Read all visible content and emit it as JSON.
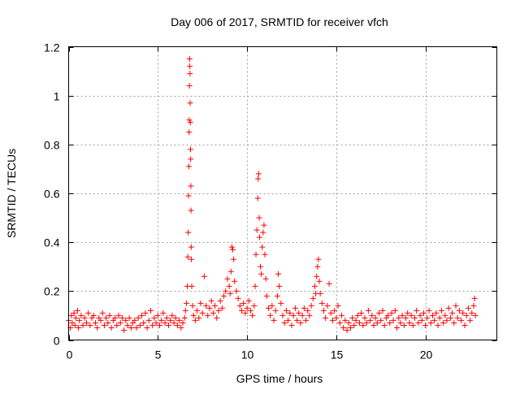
{
  "chart_data": {
    "type": "scatter",
    "title": "Day 006 of 2017, SRMTID for receiver vfch",
    "xlabel": "GPS time / hours",
    "ylabel": "SRMTID / TECUs",
    "xlim": [
      0,
      24
    ],
    "ylim": [
      0,
      1.2
    ],
    "x_ticks": [
      0,
      5,
      10,
      15,
      20
    ],
    "x_tick_labels": [
      "0",
      "5",
      "10",
      "15",
      "20"
    ],
    "y_ticks": [
      0,
      0.2,
      0.4,
      0.6,
      0.8,
      1.0,
      1.2
    ],
    "y_tick_labels": [
      "0",
      "0.2",
      "0.4",
      "0.6",
      "0.8",
      "1",
      "1.2"
    ],
    "grid": true,
    "marker": "+",
    "color": "#ff0000",
    "series": [
      {
        "name": "SRMTID",
        "points": [
          [
            0.0,
            0.08
          ],
          [
            0.1,
            0.05
          ],
          [
            0.15,
            0.1
          ],
          [
            0.2,
            0.07
          ],
          [
            0.3,
            0.11
          ],
          [
            0.35,
            0.06
          ],
          [
            0.4,
            0.09
          ],
          [
            0.5,
            0.12
          ],
          [
            0.55,
            0.05
          ],
          [
            0.6,
            0.08
          ],
          [
            0.7,
            0.1
          ],
          [
            0.8,
            0.06
          ],
          [
            0.9,
            0.09
          ],
          [
            1.0,
            0.07
          ],
          [
            1.1,
            0.11
          ],
          [
            1.2,
            0.06
          ],
          [
            1.3,
            0.09
          ],
          [
            1.4,
            0.1
          ],
          [
            1.5,
            0.07
          ],
          [
            1.6,
            0.05
          ],
          [
            1.7,
            0.09
          ],
          [
            1.8,
            0.08
          ],
          [
            1.9,
            0.11
          ],
          [
            2.0,
            0.06
          ],
          [
            2.1,
            0.09
          ],
          [
            2.2,
            0.07
          ],
          [
            2.3,
            0.1
          ],
          [
            2.4,
            0.05
          ],
          [
            2.5,
            0.08
          ],
          [
            2.6,
            0.09
          ],
          [
            2.7,
            0.06
          ],
          [
            2.8,
            0.1
          ],
          [
            2.9,
            0.07
          ],
          [
            3.0,
            0.09
          ],
          [
            3.1,
            0.04
          ],
          [
            3.2,
            0.08
          ],
          [
            3.3,
            0.06
          ],
          [
            3.4,
            0.09
          ],
          [
            3.5,
            0.05
          ],
          [
            3.6,
            0.07
          ],
          [
            3.7,
            0.08
          ],
          [
            3.8,
            0.05
          ],
          [
            3.9,
            0.09
          ],
          [
            4.0,
            0.06
          ],
          [
            4.1,
            0.1
          ],
          [
            4.2,
            0.07
          ],
          [
            4.3,
            0.11
          ],
          [
            4.4,
            0.05
          ],
          [
            4.5,
            0.08
          ],
          [
            4.6,
            0.12
          ],
          [
            4.7,
            0.06
          ],
          [
            4.8,
            0.09
          ],
          [
            4.9,
            0.07
          ],
          [
            5.0,
            0.1
          ],
          [
            5.1,
            0.06
          ],
          [
            5.2,
            0.08
          ],
          [
            5.3,
            0.11
          ],
          [
            5.4,
            0.07
          ],
          [
            5.5,
            0.09
          ],
          [
            5.6,
            0.06
          ],
          [
            5.7,
            0.08
          ],
          [
            5.8,
            0.1
          ],
          [
            5.9,
            0.07
          ],
          [
            6.0,
            0.09
          ],
          [
            6.1,
            0.06
          ],
          [
            6.2,
            0.08
          ],
          [
            6.3,
            0.05
          ],
          [
            6.4,
            0.07
          ],
          [
            6.5,
            0.09
          ],
          [
            6.55,
            0.12
          ],
          [
            6.6,
            0.15
          ],
          [
            6.65,
            0.22
          ],
          [
            6.68,
            0.34
          ],
          [
            6.7,
            0.44
          ],
          [
            6.72,
            0.59
          ],
          [
            6.74,
            0.71
          ],
          [
            6.75,
            0.85
          ],
          [
            6.76,
            0.9
          ],
          [
            6.77,
            1.04
          ],
          [
            6.78,
            1.15
          ],
          [
            6.79,
            1.12
          ],
          [
            6.8,
            1.09
          ],
          [
            6.81,
            0.97
          ],
          [
            6.82,
            0.89
          ],
          [
            6.83,
            0.78
          ],
          [
            6.84,
            0.74
          ],
          [
            6.85,
            0.63
          ],
          [
            6.86,
            0.53
          ],
          [
            6.87,
            0.38
          ],
          [
            6.88,
            0.33
          ],
          [
            6.9,
            0.22
          ],
          [
            6.95,
            0.14
          ],
          [
            7.0,
            0.1
          ],
          [
            7.1,
            0.08
          ],
          [
            7.2,
            0.12
          ],
          [
            7.3,
            0.09
          ],
          [
            7.4,
            0.15
          ],
          [
            7.5,
            0.11
          ],
          [
            7.6,
            0.26
          ],
          [
            7.7,
            0.14
          ],
          [
            7.8,
            0.1
          ],
          [
            7.9,
            0.13
          ],
          [
            8.0,
            0.16
          ],
          [
            8.1,
            0.11
          ],
          [
            8.2,
            0.14
          ],
          [
            8.3,
            0.09
          ],
          [
            8.4,
            0.12
          ],
          [
            8.5,
            0.16
          ],
          [
            8.6,
            0.13
          ],
          [
            8.7,
            0.18
          ],
          [
            8.8,
            0.2
          ],
          [
            8.9,
            0.25
          ],
          [
            9.0,
            0.22
          ],
          [
            9.05,
            0.19
          ],
          [
            9.1,
            0.28
          ],
          [
            9.15,
            0.38
          ],
          [
            9.2,
            0.37
          ],
          [
            9.25,
            0.33
          ],
          [
            9.3,
            0.24
          ],
          [
            9.4,
            0.2
          ],
          [
            9.5,
            0.17
          ],
          [
            9.6,
            0.14
          ],
          [
            9.7,
            0.12
          ],
          [
            9.8,
            0.15
          ],
          [
            9.9,
            0.11
          ],
          [
            10.0,
            0.13
          ],
          [
            10.1,
            0.16
          ],
          [
            10.2,
            0.12
          ],
          [
            10.3,
            0.1
          ],
          [
            10.4,
            0.14
          ],
          [
            10.45,
            0.22
          ],
          [
            10.5,
            0.35
          ],
          [
            10.55,
            0.45
          ],
          [
            10.6,
            0.58
          ],
          [
            10.62,
            0.66
          ],
          [
            10.65,
            0.68
          ],
          [
            10.68,
            0.5
          ],
          [
            10.7,
            0.42
          ],
          [
            10.75,
            0.3
          ],
          [
            10.8,
            0.27
          ],
          [
            10.85,
            0.38
          ],
          [
            10.9,
            0.44
          ],
          [
            10.95,
            0.47
          ],
          [
            11.0,
            0.35
          ],
          [
            11.05,
            0.25
          ],
          [
            11.1,
            0.18
          ],
          [
            11.2,
            0.13
          ],
          [
            11.3,
            0.1
          ],
          [
            11.4,
            0.14
          ],
          [
            11.5,
            0.08
          ],
          [
            11.6,
            0.12
          ],
          [
            11.7,
            0.18
          ],
          [
            11.75,
            0.27
          ],
          [
            11.8,
            0.22
          ],
          [
            11.9,
            0.15
          ],
          [
            12.0,
            0.1
          ],
          [
            12.1,
            0.07
          ],
          [
            12.2,
            0.12
          ],
          [
            12.3,
            0.08
          ],
          [
            12.4,
            0.11
          ],
          [
            12.5,
            0.06
          ],
          [
            12.6,
            0.1
          ],
          [
            12.7,
            0.13
          ],
          [
            12.8,
            0.08
          ],
          [
            12.9,
            0.11
          ],
          [
            13.0,
            0.07
          ],
          [
            13.1,
            0.1
          ],
          [
            13.2,
            0.13
          ],
          [
            13.3,
            0.08
          ],
          [
            13.4,
            0.12
          ],
          [
            13.5,
            0.1
          ],
          [
            13.6,
            0.14
          ],
          [
            13.7,
            0.17
          ],
          [
            13.8,
            0.22
          ],
          [
            13.85,
            0.19
          ],
          [
            13.9,
            0.26
          ],
          [
            13.95,
            0.3
          ],
          [
            14.0,
            0.33
          ],
          [
            14.05,
            0.24
          ],
          [
            14.1,
            0.19
          ],
          [
            14.2,
            0.15
          ],
          [
            14.3,
            0.12
          ],
          [
            14.4,
            0.09
          ],
          [
            14.5,
            0.14
          ],
          [
            14.6,
            0.23
          ],
          [
            14.7,
            0.11
          ],
          [
            14.8,
            0.08
          ],
          [
            14.9,
            0.12
          ],
          [
            15.0,
            0.09
          ],
          [
            15.1,
            0.14
          ],
          [
            15.2,
            0.07
          ],
          [
            15.3,
            0.1
          ],
          [
            15.4,
            0.05
          ],
          [
            15.5,
            0.08
          ],
          [
            15.6,
            0.04
          ],
          [
            15.7,
            0.07
          ],
          [
            15.8,
            0.05
          ],
          [
            15.9,
            0.09
          ],
          [
            16.0,
            0.06
          ],
          [
            16.1,
            0.08
          ],
          [
            16.2,
            0.1
          ],
          [
            16.3,
            0.07
          ],
          [
            16.4,
            0.11
          ],
          [
            16.5,
            0.06
          ],
          [
            16.6,
            0.09
          ],
          [
            16.7,
            0.07
          ],
          [
            16.8,
            0.12
          ],
          [
            16.9,
            0.08
          ],
          [
            17.0,
            0.1
          ],
          [
            17.1,
            0.06
          ],
          [
            17.2,
            0.09
          ],
          [
            17.3,
            0.07
          ],
          [
            17.4,
            0.11
          ],
          [
            17.5,
            0.08
          ],
          [
            17.6,
            0.12
          ],
          [
            17.7,
            0.06
          ],
          [
            17.8,
            0.09
          ],
          [
            17.9,
            0.1
          ],
          [
            18.0,
            0.07
          ],
          [
            18.1,
            0.11
          ],
          [
            18.2,
            0.08
          ],
          [
            18.3,
            0.12
          ],
          [
            18.4,
            0.05
          ],
          [
            18.5,
            0.09
          ],
          [
            18.6,
            0.07
          ],
          [
            18.7,
            0.1
          ],
          [
            18.8,
            0.06
          ],
          [
            18.9,
            0.09
          ],
          [
            19.0,
            0.11
          ],
          [
            19.1,
            0.07
          ],
          [
            19.2,
            0.1
          ],
          [
            19.3,
            0.06
          ],
          [
            19.4,
            0.09
          ],
          [
            19.5,
            0.12
          ],
          [
            19.6,
            0.07
          ],
          [
            19.7,
            0.1
          ],
          [
            19.8,
            0.08
          ],
          [
            19.9,
            0.11
          ],
          [
            20.0,
            0.06
          ],
          [
            20.1,
            0.09
          ],
          [
            20.2,
            0.12
          ],
          [
            20.3,
            0.07
          ],
          [
            20.4,
            0.1
          ],
          [
            20.5,
            0.08
          ],
          [
            20.6,
            0.11
          ],
          [
            20.7,
            0.06
          ],
          [
            20.8,
            0.09
          ],
          [
            20.9,
            0.12
          ],
          [
            21.0,
            0.07
          ],
          [
            21.1,
            0.1
          ],
          [
            21.2,
            0.08
          ],
          [
            21.3,
            0.13
          ],
          [
            21.4,
            0.09
          ],
          [
            21.5,
            0.11
          ],
          [
            21.6,
            0.07
          ],
          [
            21.7,
            0.14
          ],
          [
            21.8,
            0.09
          ],
          [
            21.9,
            0.12
          ],
          [
            22.0,
            0.08
          ],
          [
            22.1,
            0.11
          ],
          [
            22.2,
            0.06
          ],
          [
            22.3,
            0.1
          ],
          [
            22.4,
            0.13
          ],
          [
            22.5,
            0.08
          ],
          [
            22.6,
            0.11
          ],
          [
            22.7,
            0.14
          ],
          [
            22.75,
            0.17
          ],
          [
            22.8,
            0.1
          ]
        ]
      }
    ]
  }
}
